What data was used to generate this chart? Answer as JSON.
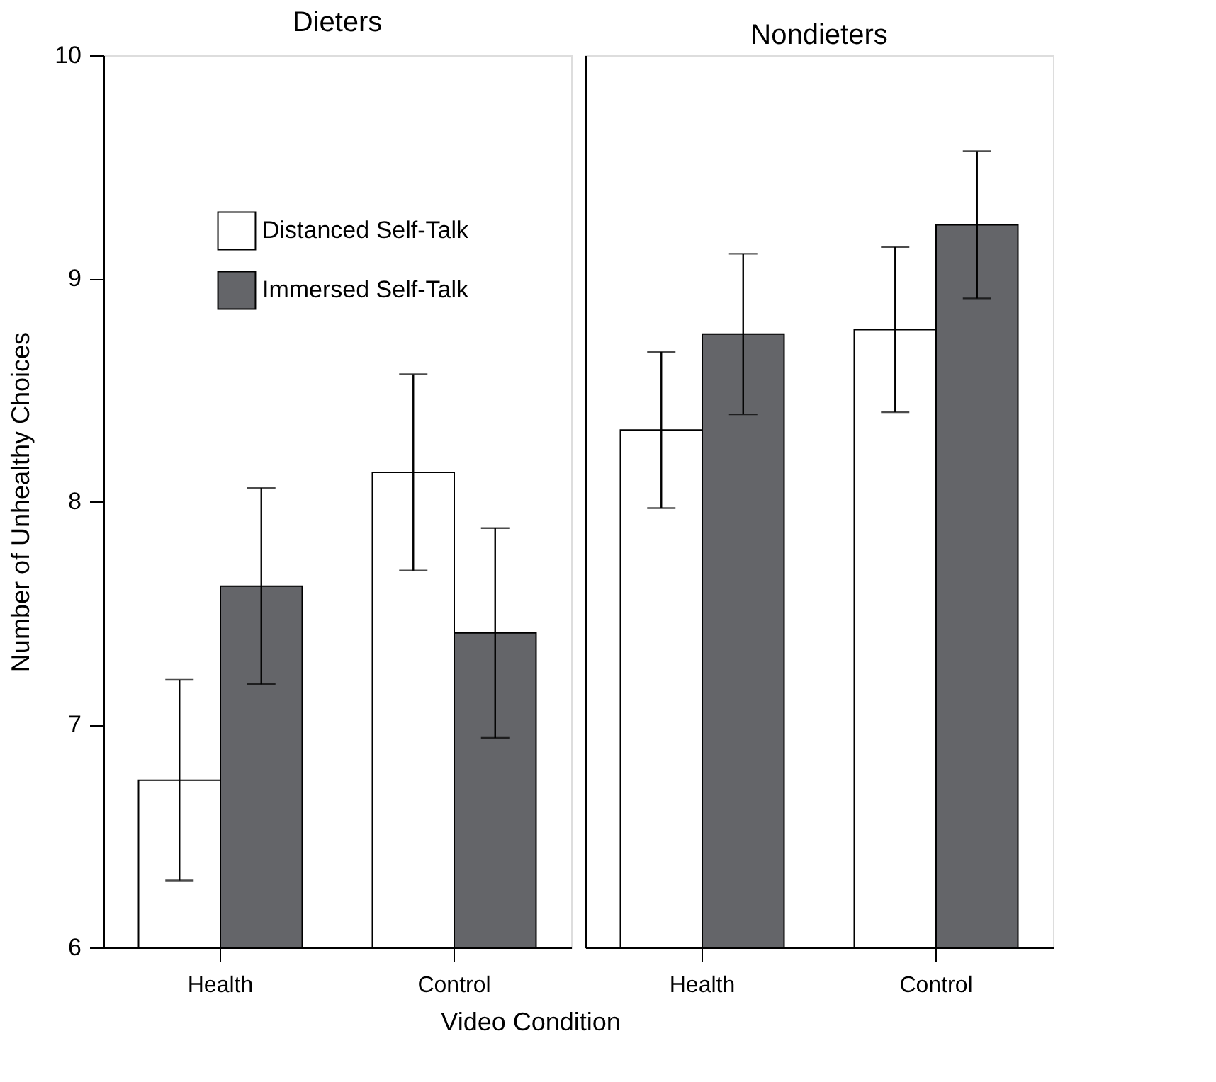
{
  "chart_data": [
    {
      "type": "bar",
      "title": "Dieters",
      "xlabel": "Video Condition",
      "ylabel": "Number of Unhealthy Choices",
      "categories": [
        "Health",
        "Control"
      ],
      "ylim": [
        6,
        10
      ],
      "yticks": [
        6,
        7,
        8,
        9,
        10
      ],
      "grid": false,
      "legend": "top left",
      "series": [
        {
          "name": "Distanced Self-Talk",
          "color": "#ffffff",
          "values": [
            6.75,
            8.13
          ],
          "errors": [
            0.45,
            0.44
          ]
        },
        {
          "name": "Immersed Self-Talk",
          "color": "#646569",
          "values": [
            7.62,
            7.41
          ],
          "errors": [
            0.44,
            0.47
          ]
        }
      ]
    },
    {
      "type": "bar",
      "title": "Nondieters",
      "categories": [
        "Health",
        "Control"
      ],
      "ylim": [
        6,
        10
      ],
      "yticks": [
        6,
        7,
        8,
        9,
        10
      ],
      "grid": false,
      "tick_labels": "x",
      "series": [
        {
          "color": "#ffffff",
          "values": [
            8.32,
            8.77
          ],
          "errors": [
            0.35,
            0.37
          ]
        },
        {
          "color": "#646569",
          "values": [
            8.75,
            9.24
          ],
          "errors": [
            0.36,
            0.33
          ]
        }
      ]
    }
  ]
}
